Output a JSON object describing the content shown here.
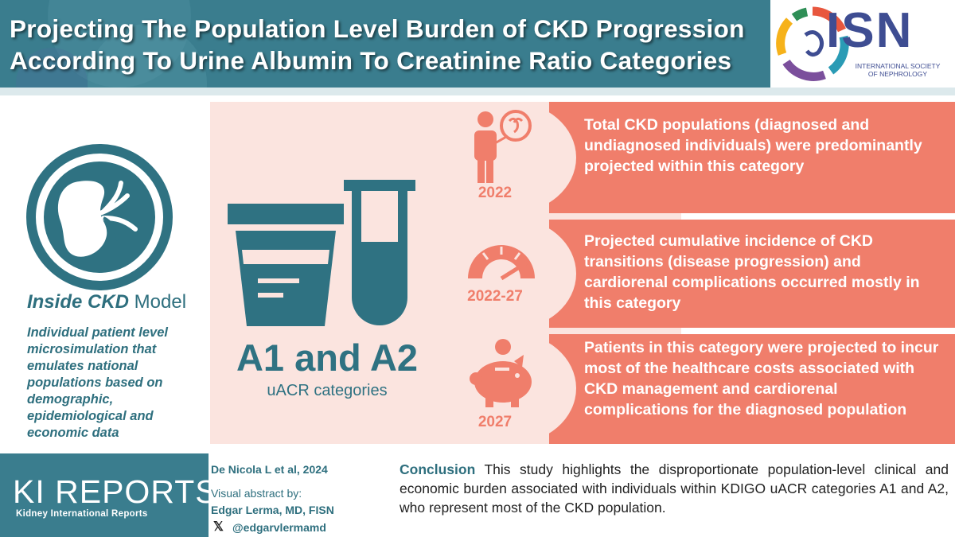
{
  "header": {
    "title_line1": "Projecting The Population Level Burden of CKD Progression",
    "title_line2": "According To Urine Albumin To Creatinine Ratio Categories"
  },
  "logo": {
    "abbr": "ISN",
    "full_line1": "INTERNATIONAL SOCIETY",
    "full_line2": "OF NEPHROLOGY",
    "colors": [
      "#e8573e",
      "#f6b21a",
      "#2a9bb5",
      "#7b4f9c",
      "#2f8f57"
    ]
  },
  "model": {
    "title_italic": "Inside CKD",
    "title_rest": " Model",
    "description": "Individual patient level microsimulation that emulates national populations based on demographic, epidemiological and economic data",
    "icon": "kidney-icon"
  },
  "center": {
    "headline": "A1 and A2",
    "subhead": "uACR categories",
    "icons": [
      "urine-cup-icon",
      "test-tube-icon"
    ]
  },
  "findings": [
    {
      "year": "2022",
      "icon": "person-kidney-icon",
      "text": "Total CKD populations (diagnosed and undiagnosed individuals) were predominantly projected within this category"
    },
    {
      "year": "2022-27",
      "icon": "gauge-icon",
      "text": "Projected cumulative incidence of CKD transitions (disease progression) and cardiorenal complications occurred mostly in this category"
    },
    {
      "year": "2027",
      "icon": "piggy-bank-icon",
      "text": "Patients in this category were projected to incur most of the healthcare costs associated with CKD management and cardiorenal complications for the diagnosed population"
    }
  ],
  "footer": {
    "journal_logo": "KI REPORTS",
    "journal_sub": "Kidney International Reports",
    "citation": "De Nicola L et al, 2024",
    "visual_by": "Visual abstract by:",
    "author": "Edgar Lerma, MD, FISN",
    "x_icon": "𝕏",
    "handle": "@edgarvlermamd",
    "conclusion_label": "Conclusion",
    "conclusion_text": " This study highlights the disproportionate population-level clinical and economic burden associated with individuals within KDIGO uACR categories A1 and A2, who represent most of the CKD population."
  },
  "colors": {
    "teal": "#3a7d8e",
    "coral": "#f07e6b",
    "pink": "#fbe4df"
  }
}
